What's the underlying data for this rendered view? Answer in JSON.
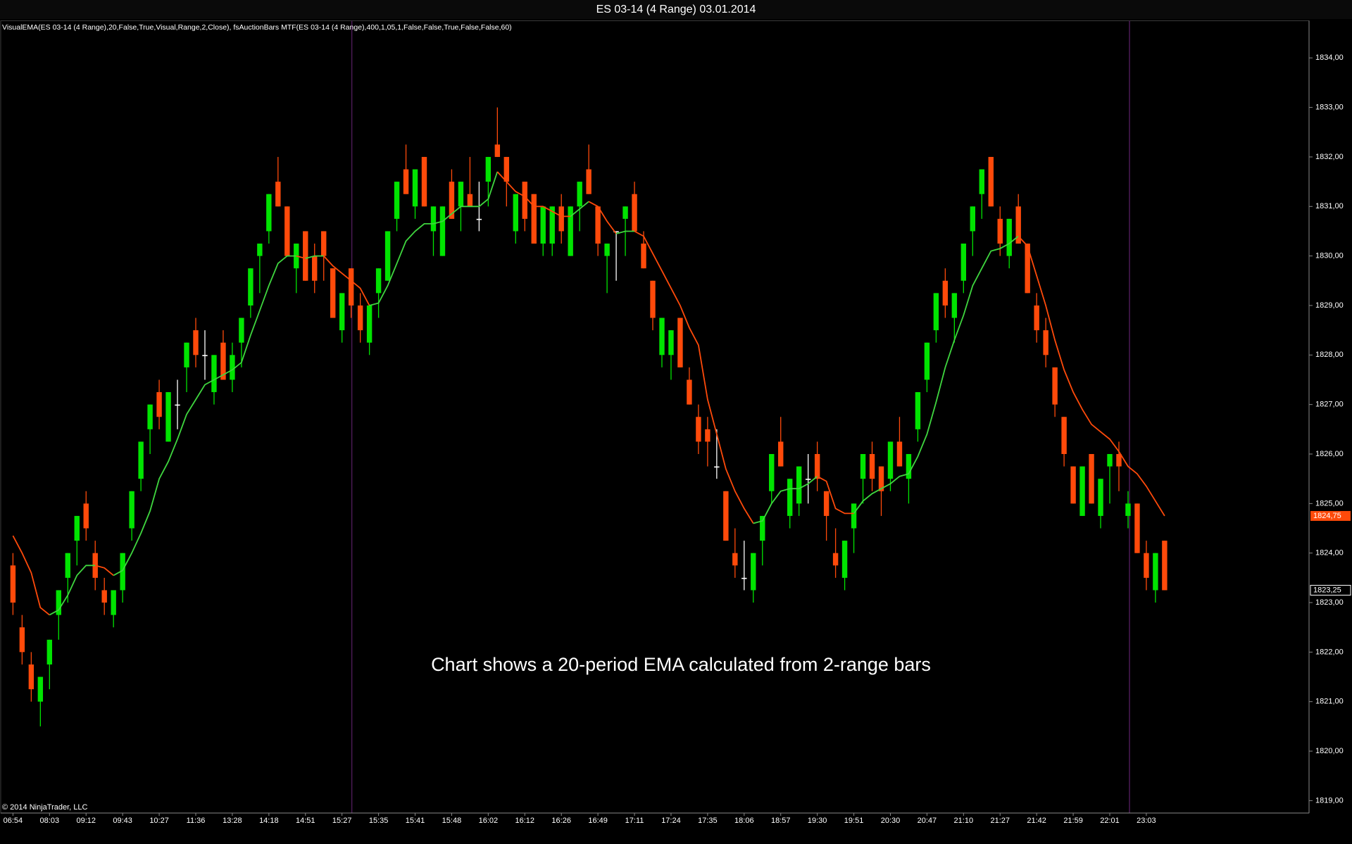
{
  "chart_data": {
    "type": "candlestick",
    "title": "ES 03-14 (4 Range)  03.01.2014",
    "indicator_label": "VisualEMA(ES 03-14 (4 Range),20,False,True,Visual,Range,2,Close), fsAuctionBars MTF(ES 03-14 (4 Range),400,1,05,1,False,False,True,False,False,60)",
    "annotation": "Chart shows a 20-period EMA calculated from 2-range bars",
    "copyright": "© 2014 NinjaTrader, LLC",
    "up_color": "#00e400",
    "down_color": "#ff4a0a",
    "doji_color": "#ffffff",
    "ylim": [
      1818.75,
      1834.75
    ],
    "yticks": [
      {
        "value": 1819,
        "label": "1819,00"
      },
      {
        "value": 1820,
        "label": "1820,00"
      },
      {
        "value": 1821,
        "label": "1821,00"
      },
      {
        "value": 1822,
        "label": "1822,00"
      },
      {
        "value": 1823,
        "label": "1823,00"
      },
      {
        "value": 1824,
        "label": "1824,00"
      },
      {
        "value": 1825,
        "label": "1825,00"
      },
      {
        "value": 1826,
        "label": "1826,00"
      },
      {
        "value": 1827,
        "label": "1827,00"
      },
      {
        "value": 1828,
        "label": "1828,00"
      },
      {
        "value": 1829,
        "label": "1829,00"
      },
      {
        "value": 1830,
        "label": "1830,00"
      },
      {
        "value": 1831,
        "label": "1831,00"
      },
      {
        "value": 1832,
        "label": "1832,00"
      },
      {
        "value": 1833,
        "label": "1833,00"
      },
      {
        "value": 1834,
        "label": "1834,00"
      }
    ],
    "categories": [
      "06:54",
      null,
      null,
      null,
      "08:03",
      null,
      null,
      null,
      "09:12",
      null,
      null,
      null,
      "09:43",
      null,
      null,
      null,
      "10:27",
      null,
      null,
      null,
      "11:36",
      null,
      null,
      null,
      "13:28",
      null,
      null,
      null,
      "14:18",
      null,
      null,
      null,
      "14:51",
      null,
      null,
      null,
      "15:27",
      null,
      null,
      null,
      "15:35",
      null,
      null,
      null,
      "15:41",
      null,
      null,
      null,
      "15:48",
      null,
      null,
      null,
      "16:02",
      null,
      null,
      null,
      "16:12",
      null,
      null,
      null,
      "16:26",
      null,
      null,
      null,
      "16:49",
      null,
      null,
      null,
      "17:11",
      null,
      null,
      null,
      "17:24",
      null,
      null,
      null,
      "17:35",
      null,
      null,
      null,
      "18:06",
      null,
      null,
      null,
      "18:57",
      null,
      null,
      null,
      "19:30",
      null,
      null,
      null,
      "19:51",
      null,
      null,
      null,
      "20:30",
      null,
      null,
      null,
      "20:47",
      null,
      null,
      null,
      "21:10",
      null,
      null,
      null,
      "21:27",
      null,
      null,
      null,
      "21:42",
      null,
      null,
      null,
      "21:59",
      null,
      null,
      null,
      "22:01",
      null,
      null,
      null,
      "23:03",
      null,
      null
    ],
    "ohlc": [
      [
        1823.75,
        1824.0,
        1822.75,
        1823.0
      ],
      [
        1822.5,
        1822.75,
        1821.75,
        1822.0
      ],
      [
        1821.75,
        1822.0,
        1821.0,
        1821.25
      ],
      [
        1821.0,
        1821.5,
        1820.5,
        1821.5
      ],
      [
        1821.75,
        1822.25,
        1821.25,
        1822.25
      ],
      [
        1822.75,
        1823.25,
        1822.25,
        1823.25
      ],
      [
        1823.5,
        1824.0,
        1823.0,
        1824.0
      ],
      [
        1824.25,
        1824.75,
        1823.75,
        1824.75
      ],
      [
        1825.0,
        1825.25,
        1824.25,
        1824.5
      ],
      [
        1824.0,
        1824.25,
        1823.25,
        1823.5
      ],
      [
        1823.25,
        1823.5,
        1822.75,
        1823.0
      ],
      [
        1822.75,
        1823.25,
        1822.5,
        1823.25
      ],
      [
        1823.25,
        1824.0,
        1823.0,
        1824.0
      ],
      [
        1824.5,
        1825.25,
        1824.25,
        1825.25
      ],
      [
        1825.5,
        1826.25,
        1825.25,
        1826.25
      ],
      [
        1826.5,
        1827.0,
        1826.0,
        1827.0
      ],
      [
        1827.25,
        1827.5,
        1826.5,
        1826.75
      ],
      [
        1826.25,
        1827.25,
        1826.25,
        1827.25
      ],
      [
        1827.0,
        1827.5,
        1826.5,
        1827.0
      ],
      [
        1827.75,
        1828.25,
        1827.25,
        1828.25
      ],
      [
        1828.5,
        1828.75,
        1827.75,
        1828.0
      ],
      [
        1828.0,
        1828.5,
        1827.5,
        1828.0
      ],
      [
        1827.25,
        1828.0,
        1827.0,
        1828.0
      ],
      [
        1828.25,
        1828.5,
        1827.5,
        1827.5
      ],
      [
        1827.5,
        1828.25,
        1827.25,
        1828.0
      ],
      [
        1828.25,
        1828.75,
        1827.75,
        1828.75
      ],
      [
        1829.0,
        1829.75,
        1828.75,
        1829.75
      ],
      [
        1830.0,
        1830.25,
        1829.25,
        1830.25
      ],
      [
        1830.5,
        1831.25,
        1830.25,
        1831.25
      ],
      [
        1831.5,
        1832.0,
        1831.0,
        1831.0
      ],
      [
        1831.0,
        1831.0,
        1830.0,
        1830.0
      ],
      [
        1829.75,
        1830.25,
        1829.25,
        1830.25
      ],
      [
        1830.5,
        1830.5,
        1829.5,
        1829.5
      ],
      [
        1830.0,
        1830.25,
        1829.25,
        1829.5
      ],
      [
        1830.5,
        1830.5,
        1829.5,
        1830.0
      ],
      [
        1829.75,
        1829.75,
        1828.75,
        1828.75
      ],
      [
        1828.5,
        1829.25,
        1828.25,
        1829.25
      ],
      [
        1829.75,
        1829.75,
        1828.75,
        1829.0
      ],
      [
        1829.0,
        1829.25,
        1828.25,
        1828.5
      ],
      [
        1828.25,
        1829.0,
        1828.0,
        1829.0
      ],
      [
        1829.25,
        1829.75,
        1828.75,
        1829.75
      ],
      [
        1829.5,
        1830.5,
        1829.5,
        1830.5
      ],
      [
        1830.75,
        1831.5,
        1830.5,
        1831.5
      ],
      [
        1831.75,
        1832.25,
        1831.25,
        1831.25
      ],
      [
        1831.0,
        1831.75,
        1830.75,
        1831.75
      ],
      [
        1832.0,
        1832.0,
        1831.0,
        1831.0
      ],
      [
        1830.5,
        1831.0,
        1830.0,
        1831.0
      ],
      [
        1830.0,
        1831.0,
        1830.0,
        1831.0
      ],
      [
        1831.5,
        1831.75,
        1830.75,
        1830.75
      ],
      [
        1831.0,
        1831.5,
        1830.5,
        1831.5
      ],
      [
        1831.25,
        1832.0,
        1831.0,
        1831.0
      ],
      [
        1830.75,
        1831.5,
        1830.5,
        1830.75
      ],
      [
        1831.5,
        1832.0,
        1831.0,
        1832.0
      ],
      [
        1832.25,
        1833.0,
        1832.0,
        1832.0
      ],
      [
        1832.0,
        1832.0,
        1831.0,
        1831.5
      ],
      [
        1830.5,
        1831.25,
        1830.25,
        1831.25
      ],
      [
        1831.5,
        1831.5,
        1830.5,
        1830.75
      ],
      [
        1831.25,
        1831.25,
        1830.25,
        1830.25
      ],
      [
        1830.25,
        1831.0,
        1830.0,
        1831.0
      ],
      [
        1830.25,
        1831.0,
        1830.0,
        1831.0
      ],
      [
        1831.0,
        1831.25,
        1830.25,
        1830.5
      ],
      [
        1830.0,
        1831.0,
        1830.0,
        1831.0
      ],
      [
        1831.0,
        1831.5,
        1830.5,
        1831.5
      ],
      [
        1831.75,
        1832.25,
        1831.25,
        1831.25
      ],
      [
        1831.0,
        1831.0,
        1830.0,
        1830.25
      ],
      [
        1830.0,
        1830.25,
        1829.25,
        1830.25
      ],
      [
        1830.5,
        1830.5,
        1829.5,
        1830.5
      ],
      [
        1830.75,
        1831.0,
        1830.0,
        1831.0
      ],
      [
        1831.25,
        1831.5,
        1830.5,
        1830.5
      ],
      [
        1830.25,
        1830.5,
        1829.75,
        1829.75
      ],
      [
        1829.5,
        1829.5,
        1828.5,
        1828.75
      ],
      [
        1828.0,
        1828.75,
        1827.75,
        1828.75
      ],
      [
        1828.0,
        1828.5,
        1827.5,
        1828.5
      ],
      [
        1828.75,
        1828.75,
        1827.75,
        1827.75
      ],
      [
        1827.5,
        1827.75,
        1827.0,
        1827.0
      ],
      [
        1826.75,
        1827.0,
        1826.0,
        1826.25
      ],
      [
        1826.5,
        1826.75,
        1825.75,
        1826.25
      ],
      [
        1825.75,
        1826.5,
        1825.5,
        1825.75
      ],
      [
        1825.25,
        1825.25,
        1824.25,
        1824.25
      ],
      [
        1824.0,
        1824.5,
        1823.5,
        1823.75
      ],
      [
        1823.5,
        1824.25,
        1823.25,
        1823.5
      ],
      [
        1823.25,
        1824.0,
        1823.0,
        1824.0
      ],
      [
        1824.25,
        1824.75,
        1823.75,
        1824.75
      ],
      [
        1825.25,
        1826.0,
        1825.0,
        1826.0
      ],
      [
        1826.25,
        1826.75,
        1825.75,
        1825.75
      ],
      [
        1824.75,
        1825.5,
        1824.5,
        1825.5
      ],
      [
        1825.0,
        1825.75,
        1824.75,
        1825.75
      ],
      [
        1825.5,
        1826.0,
        1825.0,
        1825.5
      ],
      [
        1826.0,
        1826.25,
        1825.25,
        1825.5
      ],
      [
        1825.25,
        1825.25,
        1824.25,
        1824.75
      ],
      [
        1824.0,
        1824.5,
        1823.5,
        1823.75
      ],
      [
        1823.5,
        1824.25,
        1823.25,
        1824.25
      ],
      [
        1824.5,
        1825.0,
        1824.0,
        1825.0
      ],
      [
        1825.5,
        1826.0,
        1825.0,
        1826.0
      ],
      [
        1826.0,
        1826.25,
        1825.25,
        1825.5
      ],
      [
        1825.75,
        1825.75,
        1824.75,
        1825.25
      ],
      [
        1825.5,
        1826.25,
        1825.25,
        1826.25
      ],
      [
        1826.25,
        1826.75,
        1825.75,
        1825.75
      ],
      [
        1825.5,
        1826.0,
        1825.0,
        1826.0
      ],
      [
        1826.5,
        1827.25,
        1826.25,
        1827.25
      ],
      [
        1827.5,
        1828.25,
        1827.25,
        1828.25
      ],
      [
        1828.5,
        1829.25,
        1828.25,
        1829.25
      ],
      [
        1829.5,
        1829.75,
        1828.75,
        1829.0
      ],
      [
        1828.75,
        1829.25,
        1828.25,
        1829.25
      ],
      [
        1829.5,
        1830.25,
        1829.25,
        1830.25
      ],
      [
        1830.5,
        1831.0,
        1830.0,
        1831.0
      ],
      [
        1831.25,
        1831.75,
        1830.75,
        1831.75
      ],
      [
        1832.0,
        1832.0,
        1831.0,
        1831.0
      ],
      [
        1830.75,
        1831.0,
        1830.0,
        1830.25
      ],
      [
        1830.0,
        1830.75,
        1829.75,
        1830.75
      ],
      [
        1831.0,
        1831.25,
        1830.25,
        1830.25
      ],
      [
        1830.25,
        1830.25,
        1829.25,
        1829.25
      ],
      [
        1829.0,
        1829.25,
        1828.25,
        1828.5
      ],
      [
        1828.5,
        1828.75,
        1827.75,
        1828.0
      ],
      [
        1827.75,
        1827.75,
        1826.75,
        1827.0
      ],
      [
        1826.75,
        1826.75,
        1825.75,
        1826.0
      ],
      [
        1825.75,
        1825.75,
        1825.0,
        1825.0
      ],
      [
        1824.75,
        1825.75,
        1824.75,
        1825.75
      ],
      [
        1826.0,
        1826.0,
        1825.0,
        1825.0
      ],
      [
        1824.75,
        1825.5,
        1824.5,
        1825.5
      ],
      [
        1825.75,
        1826.0,
        1825.0,
        1826.0
      ],
      [
        1826.0,
        1826.25,
        1825.25,
        1825.75
      ],
      [
        1824.75,
        1825.25,
        1824.5,
        1825.0
      ],
      [
        1825.0,
        1825.0,
        1824.0,
        1824.0
      ],
      [
        1824.0,
        1824.25,
        1823.25,
        1823.5
      ],
      [
        1823.25,
        1824.0,
        1823.0,
        1824.0
      ],
      [
        1824.25,
        1824.25,
        1823.25,
        1823.25
      ]
    ],
    "last_close_label": "1823,25",
    "ema": {
      "up_color": "#3fd63f",
      "down_color": "#ff4a0a",
      "last_label": "1824,75",
      "values": [
        1824.35,
        1824.0,
        1823.6,
        1822.9,
        1822.75,
        1822.85,
        1823.15,
        1823.55,
        1823.75,
        1823.75,
        1823.7,
        1823.55,
        1823.65,
        1824.0,
        1824.4,
        1824.85,
        1825.5,
        1825.85,
        1826.3,
        1826.8,
        1827.1,
        1827.4,
        1827.5,
        1827.6,
        1827.7,
        1827.85,
        1828.4,
        1828.9,
        1829.4,
        1829.85,
        1830.0,
        1830.0,
        1829.95,
        1830.0,
        1830.0,
        1829.8,
        1829.65,
        1829.5,
        1829.35,
        1829.0,
        1829.05,
        1829.4,
        1829.85,
        1830.3,
        1830.5,
        1830.65,
        1830.65,
        1830.7,
        1830.85,
        1831.0,
        1831.0,
        1831.0,
        1831.15,
        1831.7,
        1831.5,
        1831.3,
        1831.2,
        1831.0,
        1831.0,
        1830.9,
        1830.8,
        1830.8,
        1830.95,
        1831.1,
        1831.0,
        1830.7,
        1830.45,
        1830.5,
        1830.5,
        1830.4,
        1830.05,
        1829.7,
        1829.35,
        1829.0,
        1828.55,
        1828.2,
        1827.1,
        1826.4,
        1825.7,
        1825.25,
        1824.9,
        1824.6,
        1824.65,
        1825.0,
        1825.25,
        1825.3,
        1825.3,
        1825.4,
        1825.55,
        1825.45,
        1824.9,
        1824.8,
        1824.8,
        1825.05,
        1825.2,
        1825.3,
        1825.4,
        1825.55,
        1825.6,
        1825.95,
        1826.4,
        1827.05,
        1827.75,
        1828.3,
        1828.8,
        1829.4,
        1829.75,
        1830.1,
        1830.15,
        1830.25,
        1830.4,
        1830.2,
        1829.6,
        1829.0,
        1828.3,
        1827.7,
        1827.25,
        1826.9,
        1826.6,
        1826.45,
        1826.3,
        1826.05,
        1825.75,
        1825.6,
        1825.35,
        1825.05,
        1824.75
      ]
    }
  }
}
